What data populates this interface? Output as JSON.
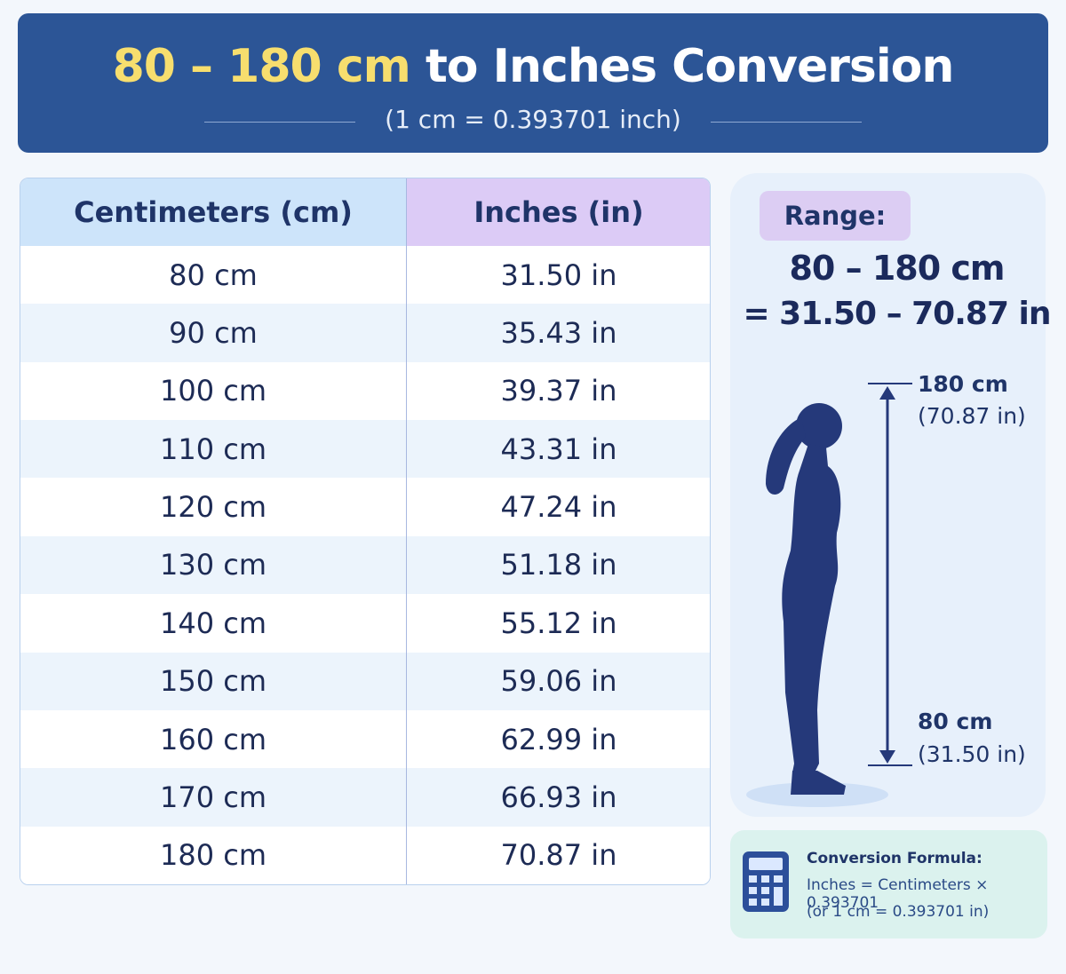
{
  "header": {
    "title_highlight": "80 – 180 cm",
    "title_rest": "to Inches Conversion",
    "subtitle": "(1 cm = 0.393701 inch)"
  },
  "table": {
    "columns": [
      "Centimeters (cm)",
      "Inches (in)"
    ],
    "rows": [
      [
        "80 cm",
        "31.50 in"
      ],
      [
        "90 cm",
        "35.43 in"
      ],
      [
        "100 cm",
        "39.37 in"
      ],
      [
        "110 cm",
        "43.31 in"
      ],
      [
        "120 cm",
        "47.24 in"
      ],
      [
        "130 cm",
        "51.18 in"
      ],
      [
        "140 cm",
        "55.12 in"
      ],
      [
        "150 cm",
        "59.06 in"
      ],
      [
        "160 cm",
        "62.99 in"
      ],
      [
        "170 cm",
        "66.93 in"
      ],
      [
        "180 cm",
        "70.87 in"
      ]
    ]
  },
  "range": {
    "label": "Range:",
    "cm": "80 – 180 cm",
    "inches": "= 31.50 – 70.87 in",
    "top_cm": "180 cm",
    "top_in": "(70.87 in)",
    "bottom_cm": "80 cm",
    "bottom_in": "(31.50 in)"
  },
  "formula": {
    "title": "Conversion Formula:",
    "line1": "Inches = Centimeters × 0.393701",
    "line2": "(or 1 cm = 0.393701 in)"
  }
}
